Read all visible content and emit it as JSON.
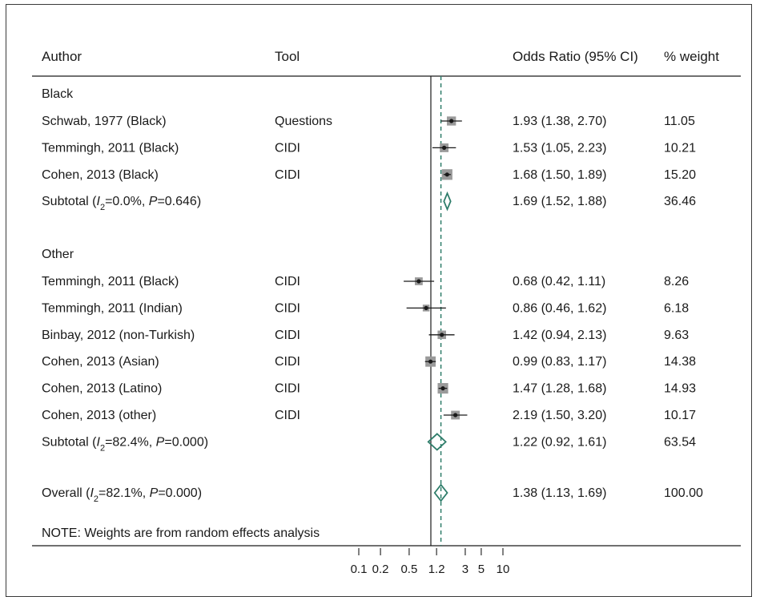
{
  "chart_data": {
    "type": "forest",
    "headers": {
      "author": "Author",
      "tool": "Tool",
      "or": "Odds Ratio (95% CI)",
      "weight": "% weight"
    },
    "x_scale": "log",
    "x_ticks": [
      "0.1",
      "0.2",
      "0.5",
      "1.2",
      "3",
      "5",
      "10"
    ],
    "x_tick_values": [
      0.1,
      0.2,
      0.5,
      1.2,
      3,
      5,
      10
    ],
    "null_line": 1,
    "overall_line": 1.38,
    "groups": [
      {
        "name": "Black",
        "studies": [
          {
            "author": "Schwab, 1977 (Black)",
            "tool": "Questions",
            "or": 1.93,
            "lo": 1.38,
            "hi": 2.7,
            "label": "1.93 (1.38, 2.70)",
            "weight": "11.05"
          },
          {
            "author": "Temmingh, 2011 (Black)",
            "tool": "CIDI",
            "or": 1.53,
            "lo": 1.05,
            "hi": 2.23,
            "label": "1.53 (1.05, 2.23)",
            "weight": "10.21"
          },
          {
            "author": "Cohen, 2013 (Black)",
            "tool": "CIDI",
            "or": 1.68,
            "lo": 1.5,
            "hi": 1.89,
            "label": "1.68 (1.50, 1.89)",
            "weight": "15.20"
          }
        ],
        "subtotal": {
          "label_prefix": "Subtotal  (",
          "i_sym": "I",
          "i_sub": "2",
          "stat_mid": "=0.0%, ",
          "p_sym": "P",
          "p_val": "=0.646)",
          "or": 1.69,
          "lo": 1.52,
          "hi": 1.88,
          "label": "1.69 (1.52, 1.88)",
          "weight": "36.46"
        }
      },
      {
        "name": "Other",
        "studies": [
          {
            "author": "Temmingh, 2011 (Black)",
            "tool": "CIDI",
            "or": 0.68,
            "lo": 0.42,
            "hi": 1.11,
            "label": "0.68 (0.42, 1.11)",
            "weight": "8.26"
          },
          {
            "author": "Temmingh, 2011 (Indian)",
            "tool": "CIDI",
            "or": 0.86,
            "lo": 0.46,
            "hi": 1.62,
            "label": "0.86 (0.46, 1.62)",
            "weight": "6.18"
          },
          {
            "author": "Binbay, 2012 (non-Turkish)",
            "tool": "CIDI",
            "or": 1.42,
            "lo": 0.94,
            "hi": 2.13,
            "label": "1.42 (0.94, 2.13)",
            "weight": "9.63"
          },
          {
            "author": "Cohen, 2013 (Asian)",
            "tool": "CIDI",
            "or": 0.99,
            "lo": 0.83,
            "hi": 1.17,
            "label": "0.99 (0.83, 1.17)",
            "weight": "14.38"
          },
          {
            "author": "Cohen, 2013 (Latino)",
            "tool": "CIDI",
            "or": 1.47,
            "lo": 1.28,
            "hi": 1.68,
            "label": "1.47 (1.28, 1.68)",
            "weight": "14.93"
          },
          {
            "author": "Cohen, 2013 (other)",
            "tool": "CIDI",
            "or": 2.19,
            "lo": 1.5,
            "hi": 3.2,
            "label": "2.19 (1.50, 3.20)",
            "weight": "10.17"
          }
        ],
        "subtotal": {
          "label_prefix": "Subtotal  (",
          "i_sym": "I",
          "i_sub": "2",
          "stat_mid": "=82.4%, ",
          "p_sym": "P",
          "p_val": "=0.000)",
          "or": 1.22,
          "lo": 0.92,
          "hi": 1.61,
          "label": "1.22 (0.92, 1.61)",
          "weight": "63.54"
        }
      }
    ],
    "overall": {
      "label_prefix": "Overall  (",
      "i_sym": "I",
      "i_sub": "2",
      "stat_mid": "=82.1%, ",
      "p_sym": "P",
      "p_val": "=0.000)",
      "or": 1.38,
      "lo": 1.13,
      "hi": 1.69,
      "label": "1.38 (1.13, 1.69)",
      "weight": "100.00"
    },
    "note": "NOTE: Weights are from random effects analysis",
    "colors": {
      "diamond": "#2e7d6a",
      "overall_line": "#2e7d6a",
      "box": "#9a9a9a",
      "text": "#1a1a1a",
      "line": "#1a1a1a"
    }
  }
}
